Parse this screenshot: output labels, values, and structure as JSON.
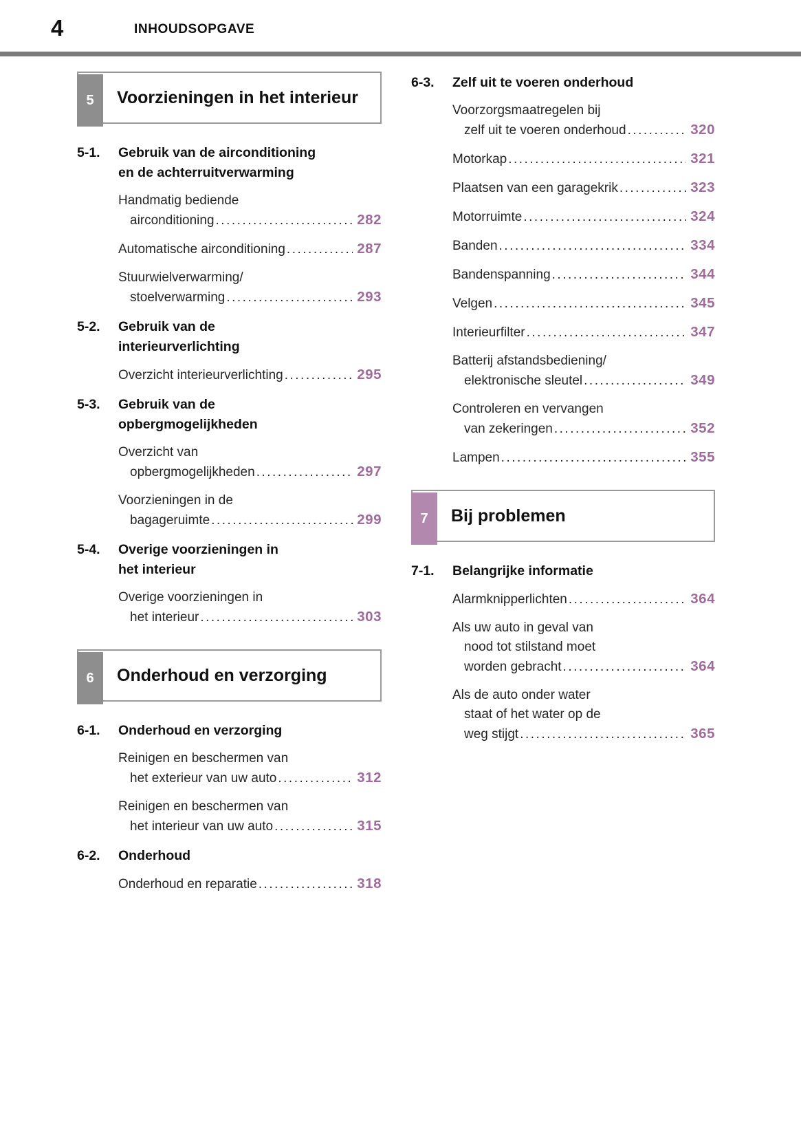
{
  "page_header": {
    "page_number": "4",
    "title": "INHOUDSOPGAVE"
  },
  "colors": {
    "accent_purple": "#9e6b9b",
    "chapter_tab_gray": "#8e8e8e",
    "chapter_tab_purple": "#b288ae",
    "rule_gray": "#7b7b7b",
    "box_border": "#9a9a9a",
    "text": "#262626"
  },
  "columns": {
    "left": [
      {
        "kind": "chapter",
        "number": "5",
        "title": "Voorzieningen in het interieur",
        "tab": "gray"
      },
      {
        "kind": "section",
        "number": "5-1.",
        "title_lines": [
          "Gebruik van de airconditioning",
          "en de achterruitverwarming"
        ]
      },
      {
        "kind": "entry",
        "lines": [
          "Handmatig bediende",
          "airconditioning"
        ],
        "page": "282"
      },
      {
        "kind": "entry",
        "lines": [
          "Automatische airconditioning"
        ],
        "page": "287"
      },
      {
        "kind": "entry",
        "lines": [
          "Stuurwielverwarming/",
          "stoelverwarming"
        ],
        "page": "293"
      },
      {
        "kind": "section",
        "number": "5-2.",
        "title_lines": [
          "Gebruik van de",
          "interieurverlichting"
        ]
      },
      {
        "kind": "entry",
        "lines": [
          "Overzicht interieurverlichting"
        ],
        "page": "295"
      },
      {
        "kind": "section",
        "number": "5-3.",
        "title_lines": [
          "Gebruik van de",
          "opbergmogelijkheden"
        ]
      },
      {
        "kind": "entry",
        "lines": [
          "Overzicht van",
          "opbergmogelijkheden"
        ],
        "page": "297"
      },
      {
        "kind": "entry",
        "lines": [
          "Voorzieningen in de",
          "bagageruimte"
        ],
        "page": "299"
      },
      {
        "kind": "section",
        "number": "5-4.",
        "title_lines": [
          "Overige voorzieningen in",
          "het interieur"
        ]
      },
      {
        "kind": "entry",
        "lines": [
          "Overige voorzieningen in",
          "het interieur"
        ],
        "page": "303"
      },
      {
        "kind": "chapter",
        "number": "6",
        "title": "Onderhoud en verzorging",
        "tab": "gray"
      },
      {
        "kind": "section",
        "number": "6-1.",
        "title_lines": [
          "Onderhoud en verzorging"
        ]
      },
      {
        "kind": "entry",
        "lines": [
          "Reinigen en beschermen van",
          "het exterieur van uw auto"
        ],
        "page": "312"
      },
      {
        "kind": "entry",
        "lines": [
          "Reinigen en beschermen van",
          "het interieur van uw auto"
        ],
        "page": "315"
      },
      {
        "kind": "section",
        "number": "6-2.",
        "title_lines": [
          "Onderhoud"
        ]
      },
      {
        "kind": "entry",
        "lines": [
          "Onderhoud en reparatie"
        ],
        "page": "318"
      }
    ],
    "right": [
      {
        "kind": "section",
        "number": "6-3.",
        "title_lines": [
          "Zelf uit te voeren onderhoud"
        ]
      },
      {
        "kind": "entry",
        "lines": [
          "Voorzorgsmaatregelen bij",
          "zelf uit te voeren onderhoud"
        ],
        "page": "320"
      },
      {
        "kind": "entry",
        "lines": [
          "Motorkap"
        ],
        "page": "321"
      },
      {
        "kind": "entry",
        "lines": [
          "Plaatsen van een garagekrik"
        ],
        "page": "323"
      },
      {
        "kind": "entry",
        "lines": [
          "Motorruimte"
        ],
        "page": "324"
      },
      {
        "kind": "entry",
        "lines": [
          "Banden"
        ],
        "page": "334"
      },
      {
        "kind": "entry",
        "lines": [
          "Bandenspanning"
        ],
        "page": "344"
      },
      {
        "kind": "entry",
        "lines": [
          "Velgen"
        ],
        "page": "345"
      },
      {
        "kind": "entry",
        "lines": [
          "Interieurfilter"
        ],
        "page": "347"
      },
      {
        "kind": "entry",
        "lines": [
          "Batterij afstandsbediening/",
          "elektronische sleutel"
        ],
        "page": "349"
      },
      {
        "kind": "entry",
        "lines": [
          "Controleren en vervangen",
          "van zekeringen"
        ],
        "page": "352"
      },
      {
        "kind": "entry",
        "lines": [
          "Lampen"
        ],
        "page": "355"
      },
      {
        "kind": "chapter",
        "number": "7",
        "title": "Bij problemen",
        "tab": "purple"
      },
      {
        "kind": "section",
        "number": "7-1.",
        "title_lines": [
          "Belangrijke informatie"
        ]
      },
      {
        "kind": "entry",
        "lines": [
          "Alarmknipperlichten"
        ],
        "page": "364"
      },
      {
        "kind": "entry",
        "lines": [
          "Als uw auto in geval van",
          "nood tot stilstand moet",
          "worden gebracht"
        ],
        "page": "364"
      },
      {
        "kind": "entry",
        "lines": [
          "Als de auto onder water",
          "staat of het water op de",
          "weg stijgt"
        ],
        "page": "365"
      }
    ]
  }
}
